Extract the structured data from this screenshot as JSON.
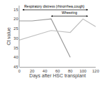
{
  "chart_data": {
    "type": "line",
    "xlabel": "Days after HSC transplant",
    "ylabel": "Ct value",
    "xlim": [
      0,
      120
    ],
    "ylim": [
      45,
      13
    ],
    "xticks": [
      0,
      20,
      40,
      60,
      80,
      100,
      120
    ],
    "yticks": [
      15,
      20,
      25,
      30,
      35,
      40,
      45
    ],
    "grid": false,
    "series": [
      {
        "x": [
          0,
          20,
          50,
          80
        ],
        "values": [
          21,
          21,
          20,
          40
        ],
        "color": "#999999"
      },
      {
        "x": [
          0,
          50,
          80,
          100,
          120
        ],
        "values": [
          31,
          26,
          27,
          20,
          24
        ],
        "color": "#c0c0c0"
      }
    ],
    "annotations": [
      {
        "text": "Respiratory distress (rhinorrhea,cough)",
        "x": [
          3,
          108
        ],
        "y": 15.2
      },
      {
        "text": "Wheezing",
        "x": [
          48,
          108
        ],
        "y": 18.5
      }
    ]
  }
}
